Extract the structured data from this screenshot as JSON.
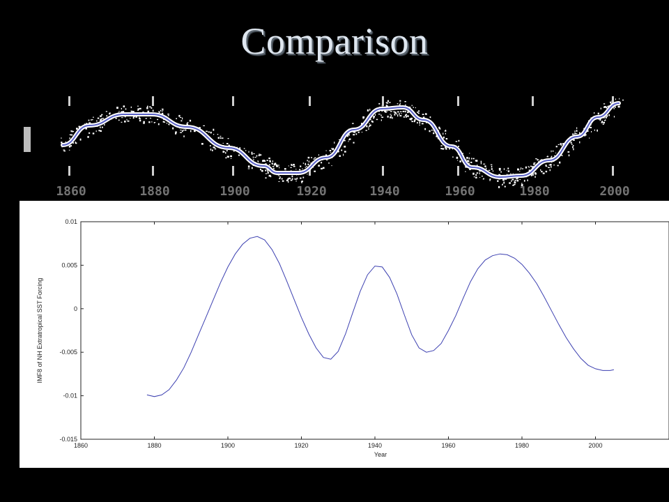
{
  "slide": {
    "title": "Comparison"
  },
  "top_chart": {
    "ticks": [
      "1860",
      "1880",
      "1900",
      "1920",
      "1940",
      "1960",
      "1980",
      "2000"
    ]
  },
  "chart_data": {
    "type": "line",
    "title": "",
    "xlabel": "Year",
    "ylabel": "IMF8 of NH Extratropical SST Forcing",
    "xlim": [
      1860,
      2020
    ],
    "ylim": [
      -0.015,
      0.01
    ],
    "xticks": [
      1860,
      1880,
      1900,
      1920,
      1940,
      1960,
      1980,
      2000
    ],
    "yticks": [
      -0.015,
      -0.01,
      -0.005,
      0,
      0.005,
      0.01
    ],
    "xtick_labels": [
      "1860",
      "1880",
      "1900",
      "1920",
      "1940",
      "1960",
      "1980",
      "2000"
    ],
    "ytick_labels": [
      "-0.015",
      "-0.01",
      "-0.005",
      "0",
      "0.005",
      "0.01"
    ],
    "grid": false,
    "line_color": "#3b3fb0",
    "series": [
      {
        "x": [
          1878,
          1880,
          1882,
          1884,
          1886,
          1888,
          1890,
          1892,
          1894,
          1896,
          1898,
          1900,
          1902,
          1904,
          1906,
          1908,
          1910,
          1912,
          1914,
          1916,
          1918,
          1920,
          1922,
          1924,
          1926,
          1928,
          1930,
          1932,
          1934,
          1936,
          1938,
          1940,
          1942,
          1944,
          1946,
          1948,
          1950,
          1952,
          1954,
          1956,
          1958,
          1960,
          1962,
          1964,
          1966,
          1968,
          1970,
          1972,
          1974,
          1976,
          1978,
          1980,
          1982,
          1984,
          1986,
          1988,
          1990,
          1992,
          1994,
          1996,
          1998,
          2000,
          2002,
          2004,
          2005
        ],
        "y": [
          -0.0099,
          -0.0101,
          -0.0099,
          -0.0093,
          -0.0082,
          -0.0068,
          -0.005,
          -0.003,
          -0.001,
          0.001,
          0.003,
          0.0048,
          0.0063,
          0.0074,
          0.0081,
          0.0083,
          0.0079,
          0.0068,
          0.0052,
          0.0032,
          0.0011,
          -0.001,
          -0.0029,
          -0.0045,
          -0.0056,
          -0.0058,
          -0.0049,
          -0.0029,
          -0.0004,
          0.002,
          0.0039,
          0.0049,
          0.0048,
          0.0036,
          0.0017,
          -0.0007,
          -0.003,
          -0.0045,
          -0.005,
          -0.0048,
          -0.004,
          -0.0025,
          -0.0008,
          0.0012,
          0.0031,
          0.0046,
          0.0056,
          0.0061,
          0.0063,
          0.0062,
          0.0058,
          0.0051,
          0.0041,
          0.0029,
          0.0014,
          -0.0002,
          -0.0018,
          -0.0033,
          -0.0046,
          -0.0057,
          -0.0065,
          -0.0069,
          -0.0071,
          -0.0071,
          -0.007
        ]
      }
    ]
  }
}
